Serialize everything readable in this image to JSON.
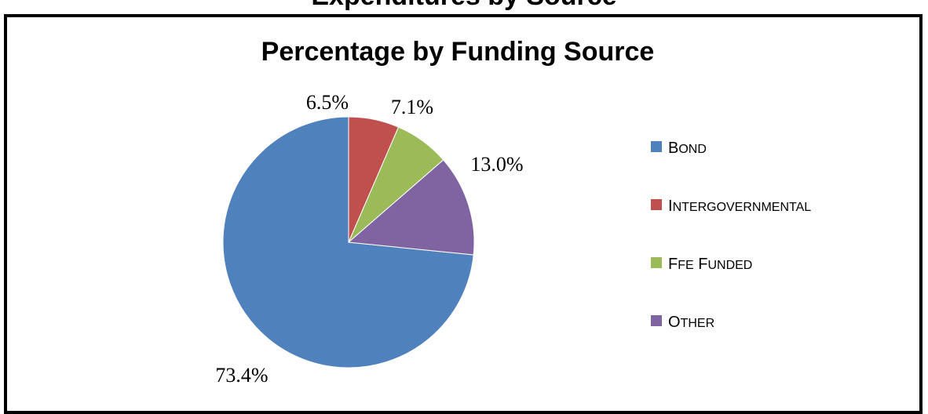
{
  "page_header": "Expenditures by Source",
  "chart_data": {
    "type": "pie",
    "title": "Percentage by Funding Source",
    "legend_position": "right",
    "slices": [
      {
        "name": "Bond",
        "legend_label": "BOND",
        "value": 73.4,
        "label": "73.4%",
        "color": "#4F81BD"
      },
      {
        "name": "Intergovernmental",
        "legend_label": "INTERGOVERNMENTAL",
        "value": 6.5,
        "label": "6.5%",
        "color": "#C0504D"
      },
      {
        "name": "FFE Funded",
        "legend_label": "FFE FUNDED",
        "value": 7.1,
        "label": "7.1%",
        "color": "#9BBB59"
      },
      {
        "name": "Other",
        "legend_label": "OTHER",
        "value": 13.0,
        "label": "13.0%",
        "color": "#8064A2"
      }
    ]
  }
}
